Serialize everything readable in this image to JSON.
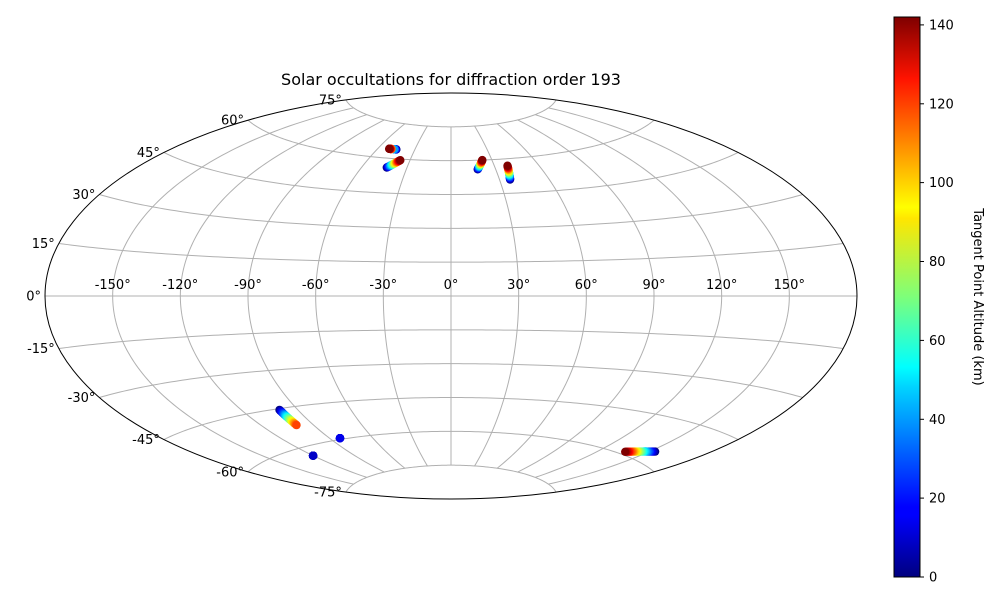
{
  "chart_data": {
    "type": "scatter",
    "projection": "aitoff",
    "title": "Solar occultations for diffraction order 193",
    "x_tick_labels": [
      {
        "value": -150,
        "label": "-150°"
      },
      {
        "value": -120,
        "label": "-120°"
      },
      {
        "value": -90,
        "label": "-90°"
      },
      {
        "value": -60,
        "label": "-60°"
      },
      {
        "value": -30,
        "label": "-30°"
      },
      {
        "value": 0,
        "label": "0°"
      },
      {
        "value": 30,
        "label": "30°"
      },
      {
        "value": 60,
        "label": "60°"
      },
      {
        "value": 90,
        "label": "90°"
      },
      {
        "value": 120,
        "label": "120°"
      },
      {
        "value": 150,
        "label": "150°"
      }
    ],
    "y_tick_labels": [
      {
        "value": -75,
        "label": "-75°"
      },
      {
        "value": -60,
        "label": "-60°"
      },
      {
        "value": -45,
        "label": "-45°"
      },
      {
        "value": -30,
        "label": "-30°"
      },
      {
        "value": -15,
        "label": "-15°"
      },
      {
        "value": 0,
        "label": "0°"
      },
      {
        "value": 15,
        "label": "15°"
      },
      {
        "value": 30,
        "label": "30°"
      },
      {
        "value": 45,
        "label": "45°"
      },
      {
        "value": 60,
        "label": "60°"
      },
      {
        "value": 75,
        "label": "75°"
      }
    ],
    "grid": true,
    "colorbar": {
      "label": "Tangent Point Altitude (km)",
      "colormap": "jet",
      "range": [
        0,
        142
      ],
      "ticks": [
        0,
        20,
        40,
        60,
        80,
        100,
        120,
        140
      ]
    },
    "occultations": [
      {
        "lon_start": -45,
        "lat_start": 64,
        "lon_end": -47,
        "lat_end": 64,
        "alt_start": 0,
        "alt_end": 40
      },
      {
        "lon_start": -49,
        "lat_start": 64,
        "lon_end": -51,
        "lat_end": 64,
        "alt_start": 100,
        "alt_end": 142
      },
      {
        "lon_start": -43.5,
        "lat_start": 56,
        "lon_end": -37,
        "lat_end": 59.5,
        "alt_start": 0,
        "alt_end": 142
      },
      {
        "lon_start": 18,
        "lat_start": 56,
        "lon_end": 23,
        "lat_end": 60,
        "alt_start": 0,
        "alt_end": 142
      },
      {
        "lon_start": 36.5,
        "lat_start": 51,
        "lon_end": 39,
        "lat_end": 57,
        "alt_start": 0,
        "alt_end": 142
      },
      {
        "lon_start": -100,
        "lat_start": -45.5,
        "lon_end": -100,
        "lat_end": -52,
        "alt_start": 0,
        "alt_end": 115
      },
      {
        "lon_start": -83,
        "lat_start": -59.5,
        "lon_end": -83,
        "lat_end": -59.5,
        "alt_start": 0,
        "alt_end": 15
      },
      {
        "lon_start": -120,
        "lat_start": -63.5,
        "lon_end": -120,
        "lat_end": -63.5,
        "alt_start": 0,
        "alt_end": 10
      },
      {
        "lon_start": 153,
        "lat_start": -56,
        "lon_end": 137,
        "lat_end": -59,
        "alt_start": 0,
        "alt_end": 142
      }
    ]
  }
}
